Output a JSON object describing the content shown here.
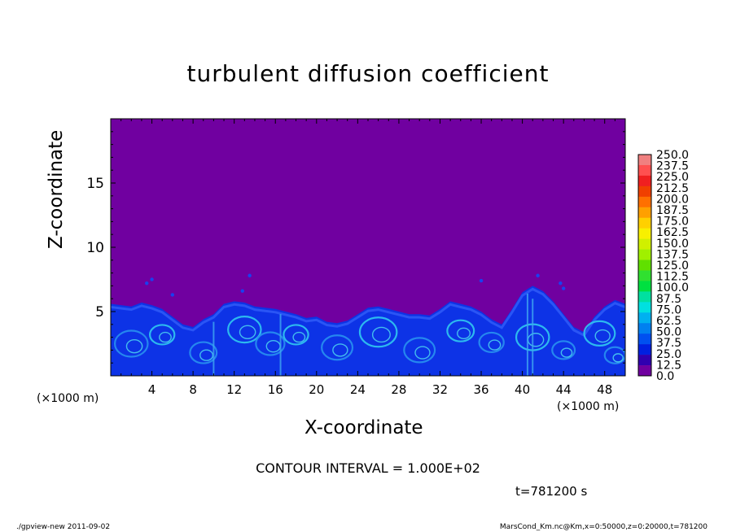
{
  "chart_data": {
    "type": "heatmap",
    "title": "turbulent diffusion coefficient",
    "xlabel": "X-coordinate",
    "ylabel": "Z-coordinate",
    "x_scale_label": "(×1000 m)",
    "y_scale_label": "(×1000 m)",
    "xlim": [
      0,
      50
    ],
    "ylim": [
      0,
      20
    ],
    "xticks": [
      4,
      8,
      12,
      16,
      20,
      24,
      28,
      32,
      36,
      40,
      44,
      48
    ],
    "yticks": [
      5,
      10,
      15
    ],
    "colorbar": {
      "levels": [
        "250.0",
        "237.5",
        "225.0",
        "212.5",
        "200.0",
        "187.5",
        "175.0",
        "162.5",
        "150.0",
        "137.5",
        "125.0",
        "112.5",
        "100.0",
        "87.5",
        "75.0",
        "62.5",
        "50.0",
        "37.5",
        "25.0",
        "12.5",
        "0.0"
      ],
      "colors": [
        "#f08080",
        "#ff5050",
        "#f02020",
        "#f04000",
        "#ff7000",
        "#ffa000",
        "#ffd000",
        "#f8f000",
        "#d0f000",
        "#a0f000",
        "#60e000",
        "#30e030",
        "#00e040",
        "#00e0a0",
        "#00e0e0",
        "#00b0f0",
        "#0080f0",
        "#0050f0",
        "#0020e0",
        "#3000b0",
        "#7000a0"
      ]
    },
    "contour_interval": "CONTOUR INTERVAL = 1.000E+02",
    "time_label": "t=781200 s",
    "boundary_layer_top": [
      [
        0,
        5.6
      ],
      [
        2,
        5.4
      ],
      [
        3,
        5.7
      ],
      [
        4,
        5.5
      ],
      [
        5,
        5.2
      ],
      [
        6,
        4.6
      ],
      [
        7,
        4.0
      ],
      [
        8,
        3.8
      ],
      [
        9,
        4.4
      ],
      [
        10,
        4.8
      ],
      [
        11,
        5.6
      ],
      [
        12,
        5.8
      ],
      [
        13,
        5.7
      ],
      [
        14,
        5.4
      ],
      [
        15,
        5.3
      ],
      [
        16,
        5.2
      ],
      [
        17,
        5.0
      ],
      [
        18,
        4.8
      ],
      [
        19,
        4.5
      ],
      [
        20,
        4.6
      ],
      [
        21,
        4.2
      ],
      [
        22,
        4.1
      ],
      [
        23,
        4.3
      ],
      [
        24,
        4.8
      ],
      [
        25,
        5.3
      ],
      [
        26,
        5.4
      ],
      [
        27,
        5.2
      ],
      [
        28,
        5.0
      ],
      [
        29,
        4.8
      ],
      [
        30,
        4.8
      ],
      [
        31,
        4.7
      ],
      [
        32,
        5.2
      ],
      [
        33,
        5.8
      ],
      [
        34,
        5.6
      ],
      [
        35,
        5.4
      ],
      [
        36,
        5.0
      ],
      [
        37,
        4.4
      ],
      [
        38,
        4.0
      ],
      [
        39,
        5.2
      ],
      [
        40,
        6.5
      ],
      [
        41,
        7.0
      ],
      [
        42,
        6.6
      ],
      [
        43,
        5.8
      ],
      [
        44,
        4.8
      ],
      [
        45,
        3.8
      ],
      [
        46,
        3.4
      ],
      [
        47,
        4.6
      ],
      [
        48,
        5.4
      ],
      [
        49,
        5.9
      ],
      [
        50,
        5.6
      ]
    ]
  },
  "footer": {
    "left": "./gpview-new 2011-09-02",
    "right": "MarsCond_Km.nc@Km,x=0:50000,z=0:20000,t=781200"
  }
}
